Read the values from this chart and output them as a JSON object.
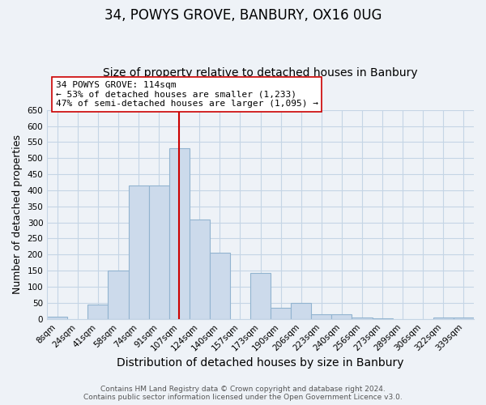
{
  "title": "34, POWYS GROVE, BANBURY, OX16 0UG",
  "subtitle": "Size of property relative to detached houses in Banbury",
  "xlabel": "Distribution of detached houses by size in Banbury",
  "ylabel": "Number of detached properties",
  "footer_lines": [
    "Contains HM Land Registry data © Crown copyright and database right 2024.",
    "Contains public sector information licensed under the Open Government Licence v3.0."
  ],
  "bin_labels": [
    "8sqm",
    "24sqm",
    "41sqm",
    "58sqm",
    "74sqm",
    "91sqm",
    "107sqm",
    "124sqm",
    "140sqm",
    "157sqm",
    "173sqm",
    "190sqm",
    "206sqm",
    "223sqm",
    "240sqm",
    "256sqm",
    "273sqm",
    "289sqm",
    "306sqm",
    "322sqm",
    "339sqm"
  ],
  "bar_values": [
    8,
    0,
    44,
    150,
    415,
    415,
    530,
    310,
    205,
    0,
    143,
    35,
    49,
    15,
    14,
    5,
    2,
    0,
    0,
    5,
    5
  ],
  "bar_color": "#ccdaeb",
  "bar_edge_color": "#92b4d0",
  "vline_color": "#cc0000",
  "vline_x_index": 6.5,
  "annotation_text": "34 POWYS GROVE: 114sqm\n← 53% of detached houses are smaller (1,233)\n47% of semi-detached houses are larger (1,095) →",
  "annotation_box_facecolor": "white",
  "annotation_box_edgecolor": "#cc0000",
  "ylim": [
    0,
    650
  ],
  "yticks": [
    0,
    50,
    100,
    150,
    200,
    250,
    300,
    350,
    400,
    450,
    500,
    550,
    600,
    650
  ],
  "bg_color": "#eef2f7",
  "plot_bg_color": "#eef2f7",
  "grid_color": "#c5d5e5",
  "title_fontsize": 12,
  "subtitle_fontsize": 10,
  "xlabel_fontsize": 10,
  "ylabel_fontsize": 9,
  "tick_fontsize": 7.5,
  "annotation_fontsize": 8,
  "footer_fontsize": 6.5
}
